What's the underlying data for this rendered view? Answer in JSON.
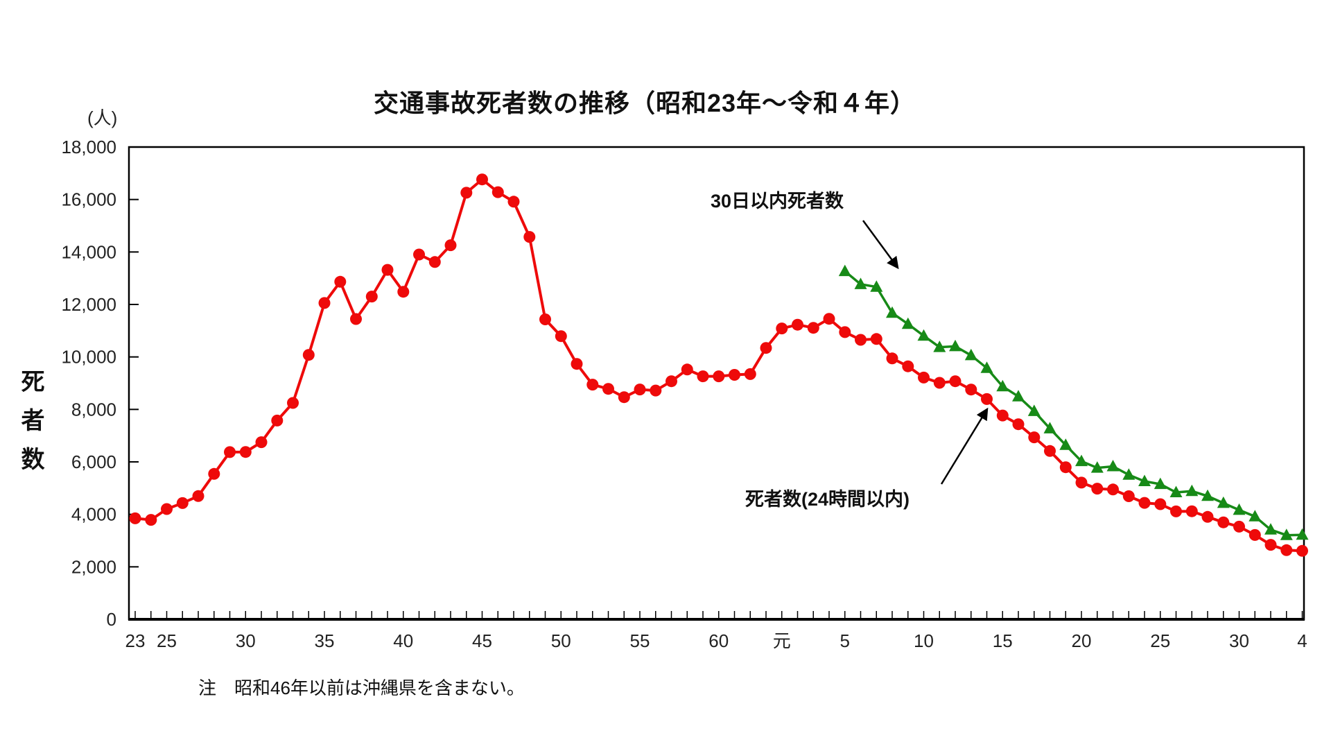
{
  "chart": {
    "title": "交通事故死者数の推移（昭和23年～令和４年）",
    "y_unit_label": "(人)",
    "y_axis_title": "死者数",
    "note": "注　昭和46年以前は沖縄県を含まない。",
    "annotations": {
      "green_label": "30日以内死者数",
      "red_label": "死者数(24時間以内)"
    }
  },
  "chart_data": {
    "type": "line",
    "title": "交通事故死者数の推移（昭和23年～令和４年）",
    "ylabel": "死者数",
    "y_unit": "(人)",
    "ylim": [
      0,
      18000
    ],
    "ytick_step": 2000,
    "grid": false,
    "legend_position": "inline-annotations",
    "y_ticks": [
      {
        "value": 0,
        "label": "0"
      },
      {
        "value": 2000,
        "label": "2,000"
      },
      {
        "value": 4000,
        "label": "4,000"
      },
      {
        "value": 6000,
        "label": "6,000"
      },
      {
        "value": 8000,
        "label": "8,000"
      },
      {
        "value": 10000,
        "label": "10,000"
      },
      {
        "value": 12000,
        "label": "12,000"
      },
      {
        "value": 14000,
        "label": "14,000"
      },
      {
        "value": 16000,
        "label": "16,000"
      },
      {
        "value": 18000,
        "label": "18,000"
      }
    ],
    "x_range_years": [
      1948,
      2022
    ],
    "x_tick_labels": [
      {
        "year": 1948,
        "label": "23"
      },
      {
        "year": 1950,
        "label": "25"
      },
      {
        "year": 1955,
        "label": "30"
      },
      {
        "year": 1960,
        "label": "35"
      },
      {
        "year": 1965,
        "label": "40"
      },
      {
        "year": 1970,
        "label": "45"
      },
      {
        "year": 1975,
        "label": "50"
      },
      {
        "year": 1980,
        "label": "55"
      },
      {
        "year": 1985,
        "label": "60"
      },
      {
        "year": 1989,
        "label": "元"
      },
      {
        "year": 1993,
        "label": "5"
      },
      {
        "year": 1998,
        "label": "10"
      },
      {
        "year": 2003,
        "label": "15"
      },
      {
        "year": 2008,
        "label": "20"
      },
      {
        "year": 2013,
        "label": "25"
      },
      {
        "year": 2018,
        "label": "30"
      },
      {
        "year": 2022,
        "label": "4"
      }
    ],
    "series": [
      {
        "name": "死者数(24時間以内)",
        "color": "#ee0a0a",
        "marker": "circle",
        "start_year": 1948,
        "values": [
          3848,
          3790,
          4202,
          4429,
          4696,
          5544,
          6374,
          6379,
          6751,
          7575,
          8248,
          10079,
          12055,
          12865,
          11445,
          12301,
          13318,
          12484,
          13904,
          13618,
          14256,
          16257,
          16765,
          16278,
          15918,
          14574,
          11432,
          10792,
          9734,
          8945,
          8783,
          8466,
          8760,
          8719,
          9073,
          9520,
          9262,
          9261,
          9317,
          9347,
          10344,
          11086,
          11227,
          11109,
          11452,
          10945,
          10653,
          10684,
          9943,
          9642,
          9214,
          9012,
          9073,
          8757,
          8396,
          7768,
          7436,
          6937,
          6415,
          5796,
          5209,
          4979,
          4948,
          4691,
          4438,
          4388,
          4113,
          4117,
          3904,
          3694,
          3532,
          3215,
          2839,
          2636,
          2610
        ]
      },
      {
        "name": "30日以内死者数",
        "color": "#178a17",
        "marker": "triangle",
        "start_year": 1993,
        "values": [
          13267,
          12768,
          12670,
          11674,
          11254,
          10805,
          10372,
          10403,
          10060,
          9575,
          8877,
          8492,
          7931,
          7272,
          6639,
          6023,
          5772,
          5828,
          5507,
          5261,
          5152,
          4838,
          4885,
          4698,
          4431,
          4166,
          3920,
          3416,
          3205,
          3216
        ]
      }
    ],
    "note": "注　昭和46年以前は沖縄県を含まない。"
  },
  "colors": {
    "red_series": "#ee0a0a",
    "green_series": "#178a17",
    "axis": "#000000",
    "text": "#111111"
  }
}
